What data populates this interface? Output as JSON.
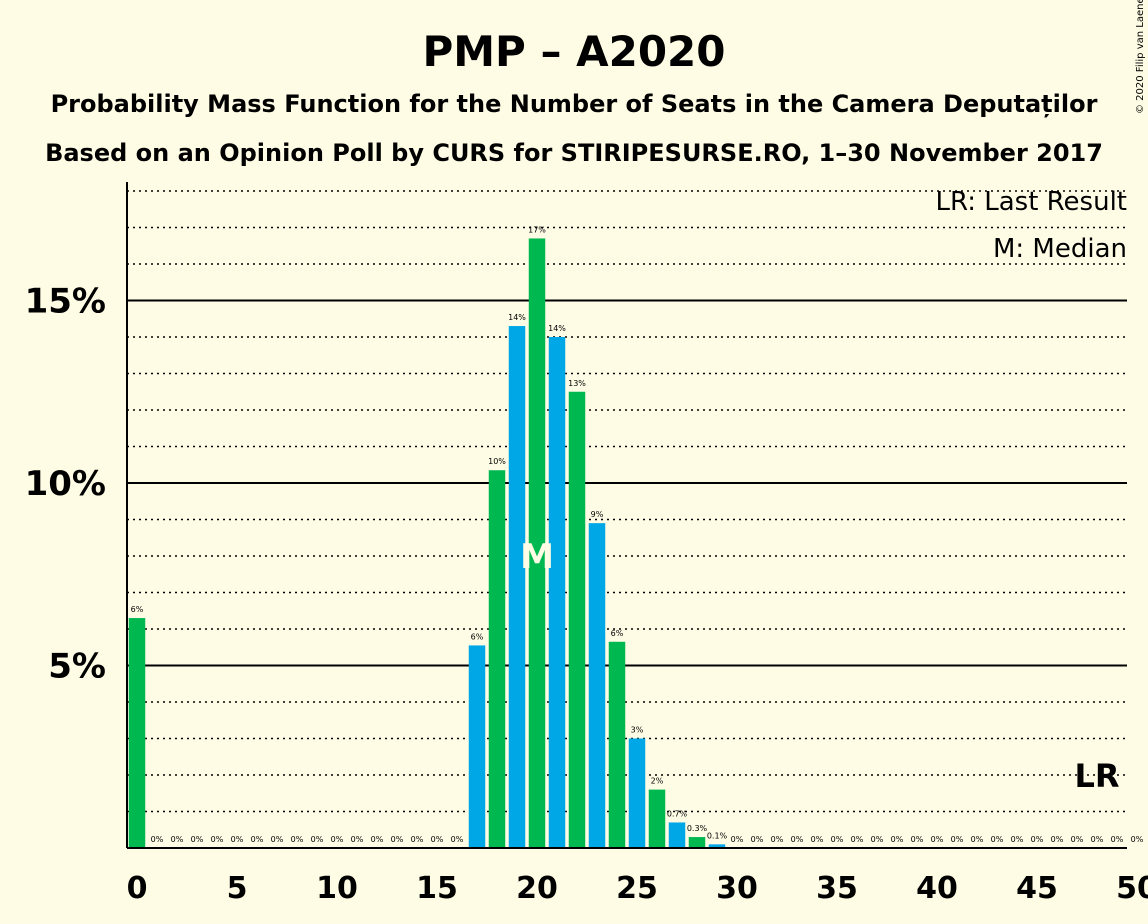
{
  "chart_data": {
    "type": "bar",
    "title": "PMP – A2020",
    "subtitle": "Probability Mass Function for the Number of Seats in the Camera Deputaților",
    "subtitle2": "Based on an Opinion Poll by CURS for STIRIPESURSE.RO, 1–30 November 2017",
    "copyright": "© 2020 Filip van Laenen",
    "legend": [
      "LR: Last Result",
      "M: Median"
    ],
    "legend_position": "top-right",
    "xlim": [
      0,
      50
    ],
    "ylim": [
      0,
      18
    ],
    "x_ticks": [
      0,
      5,
      10,
      15,
      20,
      25,
      30,
      35,
      40,
      45,
      50
    ],
    "y_ticks": [
      {
        "value": 5,
        "label": "5%"
      },
      {
        "value": 10,
        "label": "10%"
      },
      {
        "value": 15,
        "label": "15%"
      }
    ],
    "grid": "solid at labelled ticks, dotted every 1%",
    "colors": {
      "even_seat": "#00B850",
      "odd_seat": "#00A7E7",
      "background": "#FFFCE5"
    },
    "median": {
      "seat": 20,
      "label": "M"
    },
    "last_result": {
      "seat": 48,
      "label": "LR"
    },
    "bars": [
      {
        "seat": 0,
        "value": 6.3,
        "label": "6%"
      },
      {
        "seat": 1,
        "value": 0,
        "label": "0%"
      },
      {
        "seat": 2,
        "value": 0,
        "label": "0%"
      },
      {
        "seat": 3,
        "value": 0,
        "label": "0%"
      },
      {
        "seat": 4,
        "value": 0,
        "label": "0%"
      },
      {
        "seat": 5,
        "value": 0,
        "label": "0%"
      },
      {
        "seat": 6,
        "value": 0,
        "label": "0%"
      },
      {
        "seat": 7,
        "value": 0,
        "label": "0%"
      },
      {
        "seat": 8,
        "value": 0,
        "label": "0%"
      },
      {
        "seat": 9,
        "value": 0,
        "label": "0%"
      },
      {
        "seat": 10,
        "value": 0,
        "label": "0%"
      },
      {
        "seat": 11,
        "value": 0,
        "label": "0%"
      },
      {
        "seat": 12,
        "value": 0,
        "label": "0%"
      },
      {
        "seat": 13,
        "value": 0,
        "label": "0%"
      },
      {
        "seat": 14,
        "value": 0,
        "label": "0%"
      },
      {
        "seat": 15,
        "value": 0,
        "label": "0%"
      },
      {
        "seat": 16,
        "value": 0,
        "label": "0%"
      },
      {
        "seat": 17,
        "value": 5.55,
        "label": "6%"
      },
      {
        "seat": 18,
        "value": 10.35,
        "label": "10%"
      },
      {
        "seat": 19,
        "value": 14.3,
        "label": "14%"
      },
      {
        "seat": 20,
        "value": 16.7,
        "label": "17%"
      },
      {
        "seat": 21,
        "value": 14.0,
        "label": "14%"
      },
      {
        "seat": 22,
        "value": 12.5,
        "label": "13%"
      },
      {
        "seat": 23,
        "value": 8.9,
        "label": "9%"
      },
      {
        "seat": 24,
        "value": 5.65,
        "label": "6%"
      },
      {
        "seat": 25,
        "value": 3.0,
        "label": "3%"
      },
      {
        "seat": 26,
        "value": 1.6,
        "label": "2%"
      },
      {
        "seat": 27,
        "value": 0.7,
        "label": "0.7%"
      },
      {
        "seat": 28,
        "value": 0.3,
        "label": "0.3%"
      },
      {
        "seat": 29,
        "value": 0.1,
        "label": "0.1%"
      },
      {
        "seat": 30,
        "value": 0,
        "label": "0%"
      },
      {
        "seat": 31,
        "value": 0,
        "label": "0%"
      },
      {
        "seat": 32,
        "value": 0,
        "label": "0%"
      },
      {
        "seat": 33,
        "value": 0,
        "label": "0%"
      },
      {
        "seat": 34,
        "value": 0,
        "label": "0%"
      },
      {
        "seat": 35,
        "value": 0,
        "label": "0%"
      },
      {
        "seat": 36,
        "value": 0,
        "label": "0%"
      },
      {
        "seat": 37,
        "value": 0,
        "label": "0%"
      },
      {
        "seat": 38,
        "value": 0,
        "label": "0%"
      },
      {
        "seat": 39,
        "value": 0,
        "label": "0%"
      },
      {
        "seat": 40,
        "value": 0,
        "label": "0%"
      },
      {
        "seat": 41,
        "value": 0,
        "label": "0%"
      },
      {
        "seat": 42,
        "value": 0,
        "label": "0%"
      },
      {
        "seat": 43,
        "value": 0,
        "label": "0%"
      },
      {
        "seat": 44,
        "value": 0,
        "label": "0%"
      },
      {
        "seat": 45,
        "value": 0,
        "label": "0%"
      },
      {
        "seat": 46,
        "value": 0,
        "label": "0%"
      },
      {
        "seat": 47,
        "value": 0,
        "label": "0%"
      },
      {
        "seat": 48,
        "value": 0,
        "label": "0%"
      },
      {
        "seat": 49,
        "value": 0,
        "label": "0%"
      },
      {
        "seat": 50,
        "value": 0,
        "label": "0%"
      }
    ]
  }
}
